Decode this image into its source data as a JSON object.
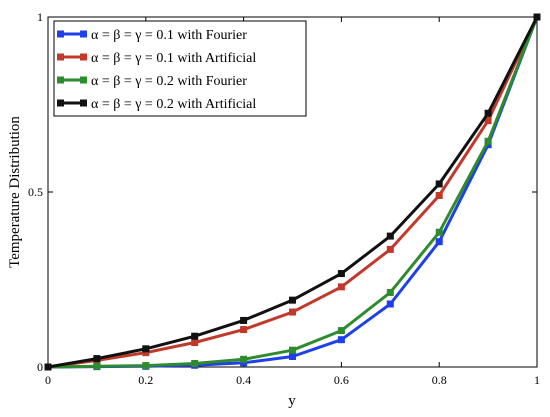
{
  "chart_data": {
    "type": "line",
    "title": "",
    "xlabel": "y",
    "ylabel": "Temperature  Distribution",
    "xlim": [
      0,
      1
    ],
    "ylim": [
      0,
      1
    ],
    "x": [
      0,
      0.1,
      0.2,
      0.3,
      0.4,
      0.5,
      0.6,
      0.7,
      0.8,
      0.9,
      1.0
    ],
    "xticks": [
      "0",
      "0.2",
      "0.4",
      "0.6",
      "0.8",
      "1"
    ],
    "xtick_values": [
      0,
      0.2,
      0.4,
      0.6,
      0.8,
      1
    ],
    "yticks": [
      "0",
      "0.5",
      "1"
    ],
    "ytick_values": [
      0,
      0.5,
      1
    ],
    "grid": false,
    "legend_position": "top-left",
    "series": [
      {
        "name": "α = β = γ = 0.1 with Fourier",
        "color": "#1f3fe8",
        "values": [
          0,
          0.001,
          0.002,
          0.005,
          0.012,
          0.03,
          0.078,
          0.18,
          0.358,
          0.635,
          1.0
        ]
      },
      {
        "name": "α = β = γ = 0.1 with Artificial",
        "color": "#c0392b",
        "values": [
          0,
          0.019,
          0.041,
          0.07,
          0.107,
          0.157,
          0.229,
          0.336,
          0.49,
          0.704,
          1.0
        ]
      },
      {
        "name": "α = β = γ = 0.2 with Fourier",
        "color": "#2e8b2e",
        "values": [
          0,
          0.002,
          0.004,
          0.01,
          0.022,
          0.048,
          0.104,
          0.213,
          0.385,
          0.645,
          1.0
        ]
      },
      {
        "name": "α = β = γ = 0.2 with Artificial",
        "color": "#111111",
        "values": [
          0,
          0.024,
          0.052,
          0.088,
          0.133,
          0.191,
          0.267,
          0.374,
          0.523,
          0.725,
          1.0
        ]
      }
    ]
  }
}
